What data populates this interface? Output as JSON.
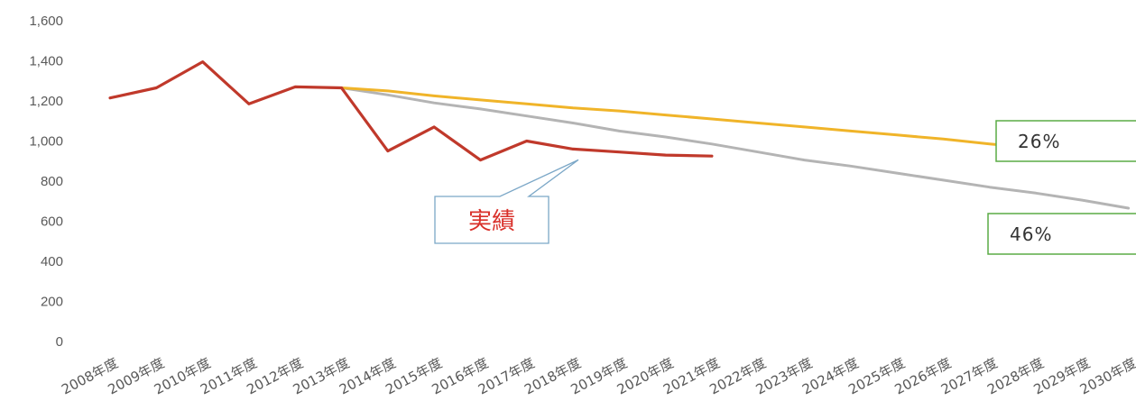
{
  "chart_data": {
    "type": "line",
    "title": "",
    "xlabel": "",
    "ylabel": "",
    "ylim": [
      0,
      1600
    ],
    "y_ticks": [
      0,
      200,
      400,
      600,
      800,
      1000,
      1200,
      1400,
      1600
    ],
    "y_tick_labels": [
      "0",
      "200",
      "400",
      "600",
      "800",
      "1,000",
      "1,200",
      "1,400",
      "1,600"
    ],
    "categories": [
      "2008年度",
      "2009年度",
      "2010年度",
      "2011年度",
      "2012年度",
      "2013年度",
      "2014年度",
      "2015年度",
      "2016年度",
      "2017年度",
      "2018年度",
      "2019年度",
      "2020年度",
      "2021年度",
      "2022年度",
      "2023年度",
      "2024年度",
      "2025年度",
      "2026年度",
      "2027年度",
      "2028年度",
      "2029年度",
      "2030年度"
    ],
    "grid": false,
    "legend": "none",
    "series": [
      {
        "color": "#c0392b",
        "values": [
          1215,
          1265,
          1395,
          1185,
          1270,
          1265,
          950,
          1070,
          905,
          1000,
          960,
          945,
          930,
          925,
          null,
          null,
          null,
          null,
          null,
          null,
          null,
          null,
          null
        ]
      },
      {
        "color": "#f0b429",
        "values": [
          null,
          null,
          null,
          null,
          null,
          1265,
          1250,
          1225,
          1205,
          1185,
          1165,
          1150,
          1130,
          1110,
          1090,
          1070,
          1050,
          1030,
          1010,
          985,
          965,
          945,
          925
        ]
      },
      {
        "color": "#b4b4b4",
        "values": [
          null,
          null,
          null,
          null,
          null,
          1265,
          1230,
          1190,
          1160,
          1125,
          1090,
          1050,
          1020,
          985,
          945,
          905,
          875,
          840,
          805,
          770,
          740,
          705,
          665
        ]
      }
    ],
    "annotations": [
      {
        "text": "実績",
        "target_series": 0,
        "target_x": "2018年度",
        "target_y": 960,
        "color": "#d9302a",
        "border": "#7ba7c7"
      },
      {
        "text": "26%",
        "target_series": 1,
        "color": "#333333",
        "border": "#5aac45"
      },
      {
        "text": "46%",
        "target_series": 2,
        "color": "#333333",
        "border": "#5aac45"
      }
    ]
  }
}
